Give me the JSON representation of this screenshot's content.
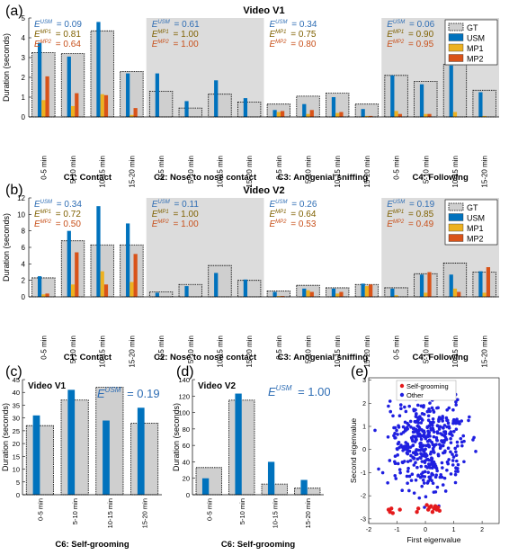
{
  "colors": {
    "usm": "#0072BD",
    "mp1": "#EDB120",
    "mp2": "#D95319",
    "gt": "#CFCFCF",
    "shade": "#DCDCDC",
    "scatter_self": "#E41A1C",
    "scatter_other": "#1F1FE0",
    "ann_usm": "#2E6DB4",
    "ann_mp1": "#7F6000",
    "ann_mp2": "#C8501A"
  },
  "panel_labels": {
    "a": "(a)",
    "b": "(b)",
    "c": "(c)",
    "d": "(d)",
    "e": "(e)"
  },
  "row_a": {
    "title": "Video V1",
    "ylabel": "Duration (seconds)",
    "ylim": [
      0,
      5
    ],
    "yticks": [
      0,
      1,
      2,
      3,
      4,
      5
    ],
    "legend": [
      "GT",
      "USM",
      "MP1",
      "MP2"
    ],
    "groups": [
      {
        "name": "C1: Contact",
        "shaded": false,
        "categories": [
          "0-5 min",
          "5-10 min",
          "10-15 min",
          "15-20 min"
        ],
        "gt": [
          3.25,
          3.2,
          4.35,
          2.3
        ],
        "usm": [
          3.75,
          3.05,
          4.8,
          2.2
        ],
        "mp1": [
          0.85,
          0.55,
          1.15,
          0.1
        ],
        "mp2": [
          2.05,
          1.2,
          1.1,
          0.45
        ],
        "ann": [
          {
            "sup": "USM",
            "val": "= 0.09"
          },
          {
            "sup": "MP1",
            "val": "= 0.81"
          },
          {
            "sup": "MP2",
            "val": "= 0.64"
          }
        ]
      },
      {
        "name": "C2: Nose to nose contact",
        "shaded": true,
        "categories": [
          "0-5 min",
          "5-10 min",
          "10-15 min",
          "15-20 min"
        ],
        "gt": [
          1.3,
          0.45,
          1.15,
          0.75
        ],
        "usm": [
          2.2,
          0.8,
          1.85,
          0.95
        ],
        "mp1": [
          0,
          0,
          0,
          0
        ],
        "mp2": [
          0,
          0,
          0,
          0
        ],
        "ann": [
          {
            "sup": "USM",
            "val": "= 0.61"
          },
          {
            "sup": "MP1",
            "val": "= 1.00"
          },
          {
            "sup": "MP2",
            "val": "= 1.00"
          }
        ]
      },
      {
        "name": "C3: Anogenial sniffing",
        "shaded": false,
        "categories": [
          "0-5 min",
          "5-10 min",
          "10-15 min",
          "15-20 min"
        ],
        "gt": [
          0.65,
          1.05,
          1.2,
          0.65
        ],
        "usm": [
          0.35,
          0.65,
          1.0,
          0.4
        ],
        "mp1": [
          0.25,
          0.15,
          0.2,
          0.05
        ],
        "mp2": [
          0.3,
          0.35,
          0.25,
          0.05
        ],
        "ann": [
          {
            "sup": "USM",
            "val": "= 0.34"
          },
          {
            "sup": "MP1",
            "val": "= 0.75"
          },
          {
            "sup": "MP2",
            "val": "= 0.80"
          }
        ]
      },
      {
        "name": "C4: Following",
        "shaded": true,
        "categories": [
          "0-5 min",
          "5-10 min",
          "10-15 min",
          "15-20 min"
        ],
        "gt": [
          2.1,
          1.8,
          2.65,
          1.35
        ],
        "usm": [
          2.1,
          1.65,
          2.6,
          1.25
        ],
        "mp1": [
          0.3,
          0.15,
          0.25,
          0.05
        ],
        "mp2": [
          0.15,
          0.15,
          0,
          0
        ],
        "ann": [
          {
            "sup": "USM",
            "val": "= 0.06"
          },
          {
            "sup": "MP1",
            "val": "= 0.90"
          },
          {
            "sup": "MP2",
            "val": "= 0.95"
          }
        ]
      }
    ]
  },
  "row_b": {
    "title": "Video V2",
    "ylabel": "Duration (seconds)",
    "ylim": [
      0,
      12
    ],
    "yticks": [
      0,
      2,
      4,
      6,
      8,
      10,
      12
    ],
    "legend": [
      "GT",
      "USM",
      "MP1",
      "MP2"
    ],
    "groups": [
      {
        "name": "C1: Contact",
        "shaded": false,
        "categories": [
          "0-5 min",
          "5-10 min",
          "10-15 min",
          "15-20 min"
        ],
        "gt": [
          2.3,
          6.8,
          6.3,
          6.3
        ],
        "usm": [
          2.5,
          8.0,
          11.0,
          8.9
        ],
        "mp1": [
          0.3,
          1.5,
          3.1,
          1.8
        ],
        "mp2": [
          0.4,
          5.4,
          1.5,
          5.2
        ],
        "ann": [
          {
            "sup": "USM",
            "val": "= 0.34"
          },
          {
            "sup": "MP1",
            "val": "= 0.72"
          },
          {
            "sup": "MP2",
            "val": "= 0.50"
          }
        ]
      },
      {
        "name": "C2: Nose to nose contact",
        "shaded": true,
        "categories": [
          "0-5 min",
          "5-10 min",
          "10-15 min",
          "15-20 min"
        ],
        "gt": [
          0.6,
          1.5,
          3.8,
          2.0
        ],
        "usm": [
          0.5,
          1.3,
          2.9,
          2.1
        ],
        "mp1": [
          0,
          0,
          0,
          0
        ],
        "mp2": [
          0,
          0,
          0,
          0
        ],
        "ann": [
          {
            "sup": "USM",
            "val": "= 0.11"
          },
          {
            "sup": "MP1",
            "val": "= 1.00"
          },
          {
            "sup": "MP2",
            "val": "= 1.00"
          }
        ]
      },
      {
        "name": "C3: Anogenial sniffing",
        "shaded": false,
        "categories": [
          "0-5 min",
          "5-10 min",
          "10-15 min",
          "15-20 min"
        ],
        "gt": [
          0.7,
          1.4,
          1.1,
          1.5
        ],
        "usm": [
          0.6,
          1.0,
          1.0,
          1.6
        ],
        "mp1": [
          0.1,
          0.8,
          0.4,
          1.3
        ],
        "mp2": [
          0.1,
          0.6,
          0.6,
          1.5
        ],
        "ann": [
          {
            "sup": "USM",
            "val": "= 0.26"
          },
          {
            "sup": "MP1",
            "val": "= 0.64"
          },
          {
            "sup": "MP2",
            "val": "= 0.53"
          }
        ]
      },
      {
        "name": "C4: Following",
        "shaded": true,
        "categories": [
          "0-5 min",
          "5-10 min",
          "10-15 min",
          "15-20 min"
        ],
        "gt": [
          1.1,
          2.8,
          4.1,
          3.0
        ],
        "usm": [
          1.0,
          2.7,
          2.7,
          3.1
        ],
        "mp1": [
          0.2,
          0.5,
          1.0,
          0.5
        ],
        "mp2": [
          0,
          3.0,
          0.6,
          3.6
        ],
        "ann": [
          {
            "sup": "USM",
            "val": "= 0.19"
          },
          {
            "sup": "MP1",
            "val": "= 0.85"
          },
          {
            "sup": "MP2",
            "val": "= 0.49"
          }
        ]
      }
    ]
  },
  "panel_c": {
    "title": "Video V1",
    "ylabel": "Duration (seconds)",
    "xlabel": "C6: Self-grooming",
    "ylim": [
      0,
      45
    ],
    "yticks": [
      0,
      5,
      10,
      15,
      20,
      25,
      30,
      35,
      40,
      45
    ],
    "categories": [
      "0-5 min",
      "5-10 min",
      "10-15 min",
      "15-20 min"
    ],
    "gt": [
      27,
      37,
      42,
      28
    ],
    "usm": [
      31,
      41,
      29,
      34
    ],
    "ann": {
      "sup": "USM",
      "val": "= 0.19"
    }
  },
  "panel_d": {
    "title": "Video V2",
    "ylabel": "Duration (seconds)",
    "xlabel": "C6: Self-grooming",
    "ylim": [
      0,
      140
    ],
    "yticks": [
      0,
      20,
      40,
      60,
      80,
      100,
      120,
      140
    ],
    "categories": [
      "0-5 min",
      "5-10 min",
      "10-15 min",
      "15-20 min"
    ],
    "gt": [
      33,
      115,
      13,
      8
    ],
    "usm": [
      20,
      123,
      40,
      18
    ],
    "ann": {
      "sup": "USM",
      "val": "= 1.00"
    }
  },
  "panel_e": {
    "xlabel": "First eigenvalue",
    "ylabel": "Second eigenvalue",
    "xlim": [
      -2,
      2.6
    ],
    "ylim": [
      -3.2,
      3.1
    ],
    "xticks": [
      -2,
      -1,
      0,
      1,
      2
    ],
    "yticks": [
      -3,
      -2,
      -1,
      0,
      1,
      2,
      3
    ],
    "legend": [
      "Self-grooming",
      "Other"
    ],
    "self_grooming_points": [
      [
        -1.3,
        -2.6
      ],
      [
        -1.25,
        -2.7
      ],
      [
        -1.2,
        -2.55
      ],
      [
        -1.15,
        -2.75
      ],
      [
        -0.9,
        -2.6
      ],
      [
        -0.3,
        -2.7
      ],
      [
        -0.25,
        -2.55
      ],
      [
        0.05,
        -2.4
      ],
      [
        0.1,
        -2.6
      ],
      [
        0.15,
        -2.5
      ],
      [
        0.2,
        -2.45
      ],
      [
        0.25,
        -2.7
      ],
      [
        0.3,
        -2.55
      ],
      [
        0.35,
        -2.45
      ],
      [
        0.4,
        -2.6
      ],
      [
        0.45,
        -2.5
      ],
      [
        0.5,
        -2.65
      ]
    ],
    "other_seed": 7,
    "other_count": 430
  }
}
